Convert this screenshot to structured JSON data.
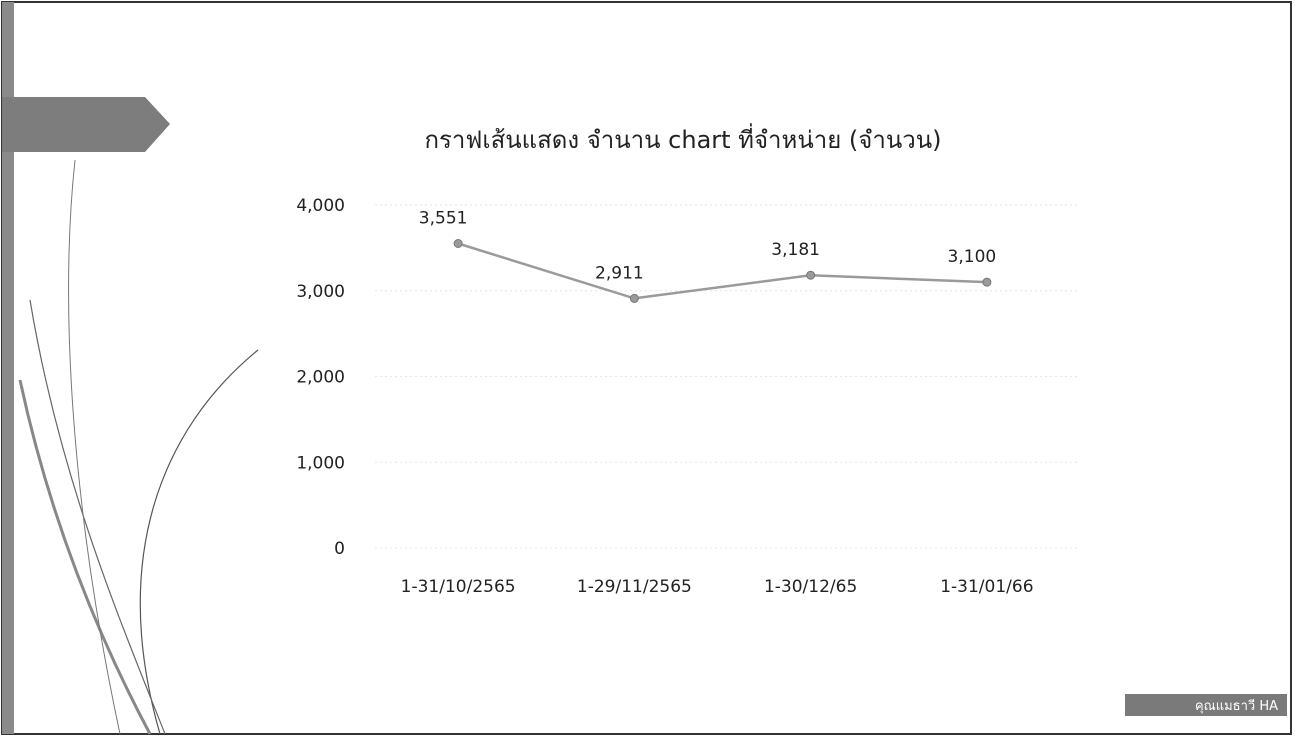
{
  "chart_data": {
    "type": "line",
    "title": "กราฟเส้นแสดง จำนาน chart ที่จำหน่าย (จำนวน)",
    "categories": [
      "1-31/10/2565",
      "1-29/11/2565",
      "1-30/12/65",
      "1-31/01/66"
    ],
    "series": [
      {
        "name": "จำนวน",
        "color": "#9a9a9a",
        "values": [
          3551,
          2911,
          3181,
          3100
        ],
        "value_labels": [
          "3,551",
          "2,911",
          "3,181",
          "3,100"
        ]
      }
    ],
    "ylim": [
      0,
      4000
    ],
    "yticks": [
      0,
      {
        "value": 1000,
        "label": "1,000"
      },
      {
        "value": 2000,
        "label": "2,000"
      },
      {
        "value": 3000,
        "label": "3,000"
      },
      {
        "value": 4000,
        "label": "4,000"
      }
    ],
    "grid": true
  },
  "footer": {
    "badge": "คุณแมธาวี HA"
  }
}
